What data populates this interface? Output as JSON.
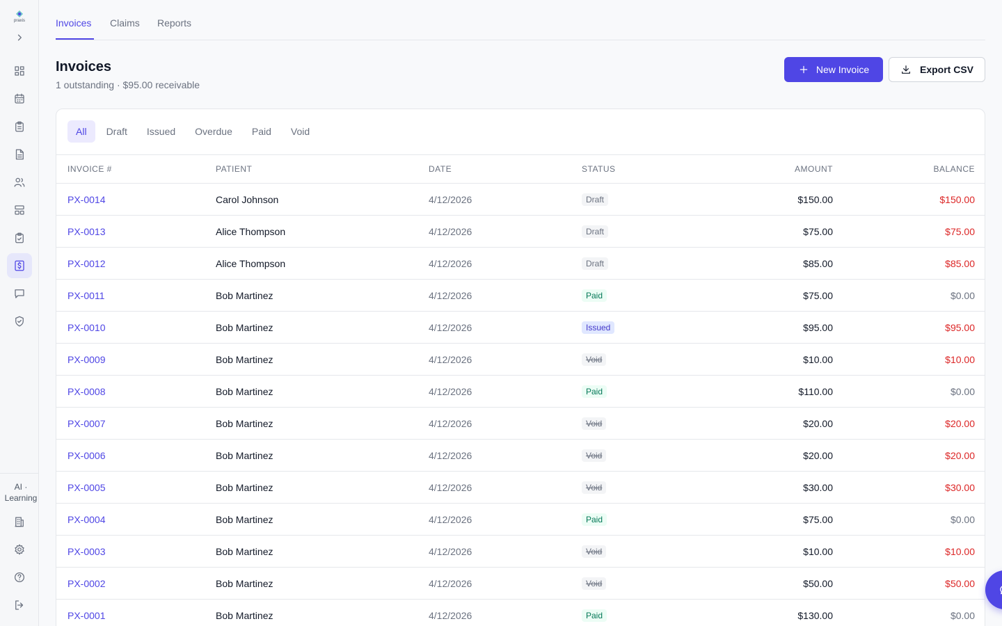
{
  "app": {
    "logo_text": "praxis",
    "accent": "#4f46e5"
  },
  "sidebar": {
    "expand_icon": "chevron-right-icon",
    "items": [
      {
        "icon": "dashboard-icon",
        "active": false
      },
      {
        "icon": "calendar-icon",
        "active": false
      },
      {
        "icon": "clipboard-icon",
        "active": false
      },
      {
        "icon": "document-icon",
        "active": false
      },
      {
        "icon": "users-icon",
        "active": false
      },
      {
        "icon": "layout-icon",
        "active": false
      },
      {
        "icon": "clipboard-check-icon",
        "active": false
      },
      {
        "icon": "billing-icon",
        "active": true
      },
      {
        "icon": "message-icon",
        "active": false
      },
      {
        "icon": "shield-icon",
        "active": false
      }
    ],
    "bottom_label": "AI · Learning",
    "bottom_items": [
      {
        "icon": "building-icon"
      },
      {
        "icon": "gear-icon"
      },
      {
        "icon": "help-icon"
      },
      {
        "icon": "logout-icon"
      }
    ]
  },
  "tabs": [
    {
      "label": "Invoices",
      "active": true
    },
    {
      "label": "Claims",
      "active": false
    },
    {
      "label": "Reports",
      "active": false
    }
  ],
  "header": {
    "title": "Invoices",
    "subtitle": "1 outstanding · $95.00 receivable",
    "new_button": "New Invoice",
    "export_button": "Export CSV"
  },
  "filters": [
    {
      "label": "All",
      "active": true
    },
    {
      "label": "Draft",
      "active": false
    },
    {
      "label": "Issued",
      "active": false
    },
    {
      "label": "Overdue",
      "active": false
    },
    {
      "label": "Paid",
      "active": false
    },
    {
      "label": "Void",
      "active": false
    }
  ],
  "table": {
    "columns": [
      "INVOICE #",
      "PATIENT",
      "DATE",
      "STATUS",
      "AMOUNT",
      "BALANCE"
    ],
    "rows": [
      {
        "invoice": "PX-0014",
        "patient": "Carol Johnson",
        "date": "4/12/2026",
        "status": "Draft",
        "amount": "$150.00",
        "balance": "$150.00"
      },
      {
        "invoice": "PX-0013",
        "patient": "Alice Thompson",
        "date": "4/12/2026",
        "status": "Draft",
        "amount": "$75.00",
        "balance": "$75.00"
      },
      {
        "invoice": "PX-0012",
        "patient": "Alice Thompson",
        "date": "4/12/2026",
        "status": "Draft",
        "amount": "$85.00",
        "balance": "$85.00"
      },
      {
        "invoice": "PX-0011",
        "patient": "Bob Martinez",
        "date": "4/12/2026",
        "status": "Paid",
        "amount": "$75.00",
        "balance": "$0.00"
      },
      {
        "invoice": "PX-0010",
        "patient": "Bob Martinez",
        "date": "4/12/2026",
        "status": "Issued",
        "amount": "$95.00",
        "balance": "$95.00"
      },
      {
        "invoice": "PX-0009",
        "patient": "Bob Martinez",
        "date": "4/12/2026",
        "status": "Void",
        "amount": "$10.00",
        "balance": "$10.00"
      },
      {
        "invoice": "PX-0008",
        "patient": "Bob Martinez",
        "date": "4/12/2026",
        "status": "Paid",
        "amount": "$110.00",
        "balance": "$0.00"
      },
      {
        "invoice": "PX-0007",
        "patient": "Bob Martinez",
        "date": "4/12/2026",
        "status": "Void",
        "amount": "$20.00",
        "balance": "$20.00"
      },
      {
        "invoice": "PX-0006",
        "patient": "Bob Martinez",
        "date": "4/12/2026",
        "status": "Void",
        "amount": "$20.00",
        "balance": "$20.00"
      },
      {
        "invoice": "PX-0005",
        "patient": "Bob Martinez",
        "date": "4/12/2026",
        "status": "Void",
        "amount": "$30.00",
        "balance": "$30.00"
      },
      {
        "invoice": "PX-0004",
        "patient": "Bob Martinez",
        "date": "4/12/2026",
        "status": "Paid",
        "amount": "$75.00",
        "balance": "$0.00"
      },
      {
        "invoice": "PX-0003",
        "patient": "Bob Martinez",
        "date": "4/12/2026",
        "status": "Void",
        "amount": "$10.00",
        "balance": "$10.00"
      },
      {
        "invoice": "PX-0002",
        "patient": "Bob Martinez",
        "date": "4/12/2026",
        "status": "Void",
        "amount": "$50.00",
        "balance": "$50.00"
      },
      {
        "invoice": "PX-0001",
        "patient": "Bob Martinez",
        "date": "4/12/2026",
        "status": "Paid",
        "amount": "$130.00",
        "balance": "$0.00"
      }
    ]
  },
  "fab": {
    "icon": "chat-bubble-icon"
  }
}
